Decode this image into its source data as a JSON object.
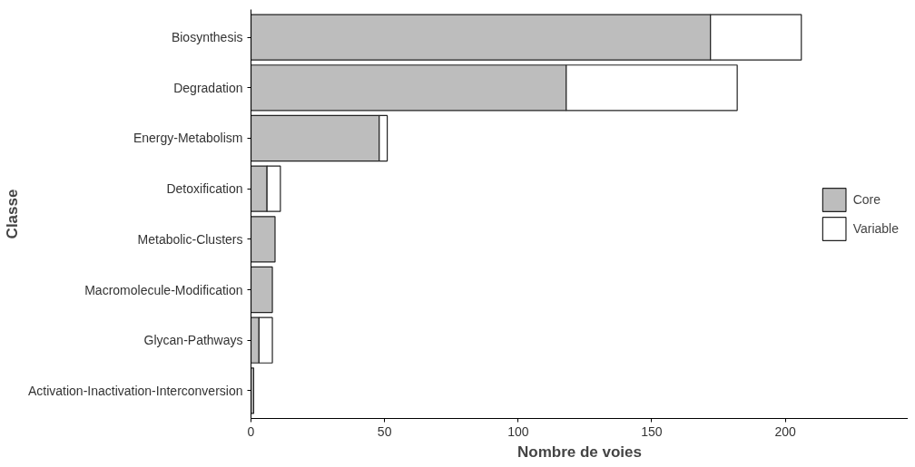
{
  "chart_data": {
    "type": "bar",
    "orientation": "horizontal",
    "stacked": true,
    "xlabel": "Nombre de voies",
    "ylabel": "Classe",
    "categories": [
      "Biosynthesis",
      "Degradation",
      "Energy-Metabolism",
      "Detoxification",
      "Metabolic-Clusters",
      "Macromolecule-Modification",
      "Glycan-Pathways",
      "Activation-Inactivation-Interconversion"
    ],
    "series": [
      {
        "name": "Core",
        "color": "#bdbdbd",
        "values": [
          172,
          118,
          48,
          6,
          9,
          8,
          3,
          1
        ]
      },
      {
        "name": "Variable",
        "color": "#ffffff",
        "values": [
          34,
          64,
          3,
          5,
          null,
          null,
          5,
          null
        ]
      }
    ],
    "xlim": [
      0,
      246
    ],
    "xticks": [
      0,
      50,
      100,
      150,
      200
    ],
    "grid": false,
    "legend": "right"
  }
}
